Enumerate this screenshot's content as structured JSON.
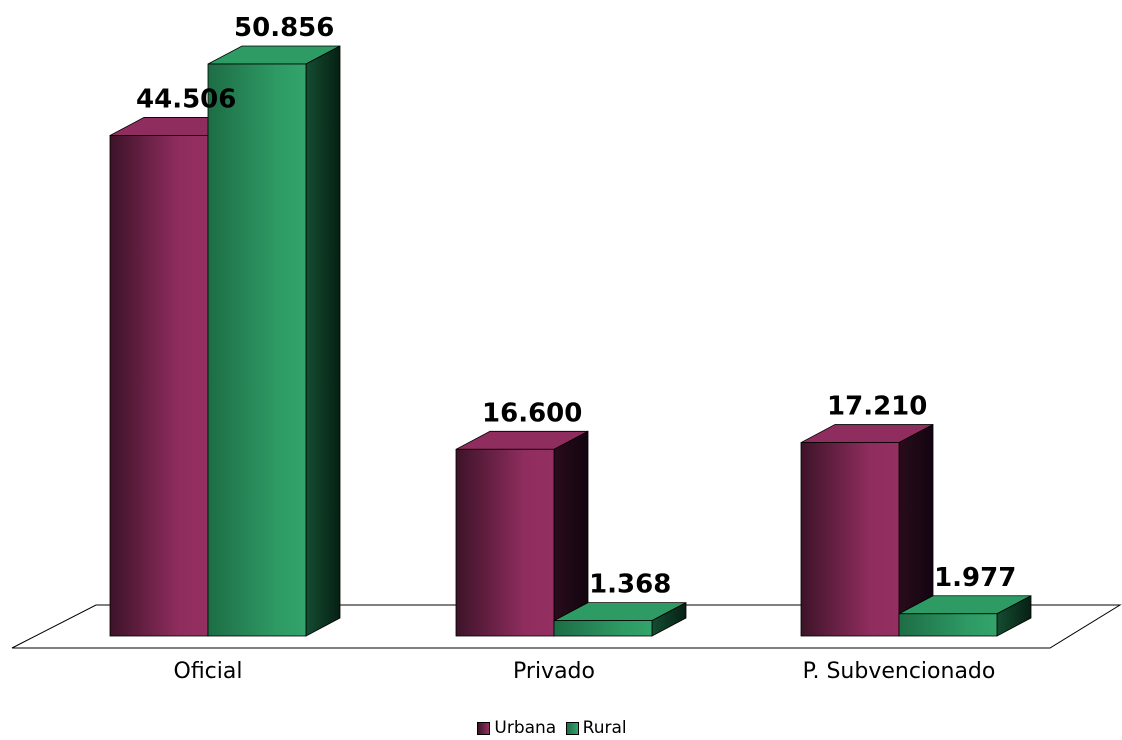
{
  "chart_data": {
    "type": "bar",
    "title": "",
    "xlabel": "",
    "ylabel": "",
    "categories": [
      "Oficial",
      "Privado",
      "P. Subvencionado"
    ],
    "series": [
      {
        "name": "Urbana",
        "values": [
          44.506,
          16.6,
          17.2
        ],
        "labels": [
          "44.506",
          "16.600",
          "17.210"
        ],
        "color": "#8f2d5e"
      },
      {
        "name": "Rural",
        "values": [
          50.856,
          1.368,
          1.977
        ],
        "labels": [
          "50.856",
          "1.368",
          "1.977"
        ],
        "color": "#2e9a64"
      }
    ],
    "ylim": [
      0,
      50.856
    ],
    "grid": false,
    "legend_position": "bottom",
    "style": "3d-column"
  }
}
